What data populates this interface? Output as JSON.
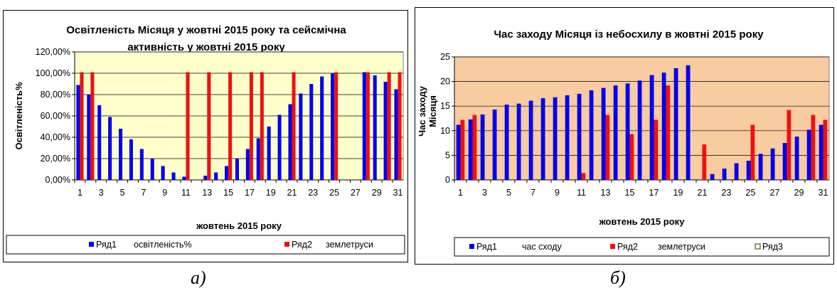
{
  "captions": {
    "a": "а)",
    "b": "б)"
  },
  "colors": {
    "series1": "#0000ee",
    "series2": "#ee1111",
    "plot_a_bg": "#ffffcc",
    "plot_b_bg": "#f8cba0",
    "legend_box3": "#ffffcc"
  },
  "chart_data": [
    {
      "type": "bar",
      "title_line1": "Освітленість Місяця у жовтні 2015 року та сейсмічна",
      "title_line2": "активність  у жовтні 2015 року",
      "xlabel": "жовтень 2015 року",
      "ylabel": "Освітленість%",
      "ylim": [
        0,
        120
      ],
      "y_ticks": [
        "0,00%",
        "20,00%",
        "40,00%",
        "60,00%",
        "80,00%",
        "100,00%",
        "120,00%"
      ],
      "x_ticks": [
        "1",
        "3",
        "5",
        "7",
        "9",
        "11",
        "13",
        "15",
        "17",
        "19",
        "21",
        "23",
        "25",
        "27",
        "29",
        "31"
      ],
      "days": [
        1,
        2,
        3,
        4,
        5,
        6,
        7,
        8,
        9,
        10,
        11,
        12,
        13,
        14,
        15,
        16,
        17,
        18,
        19,
        20,
        21,
        22,
        23,
        24,
        25,
        26,
        27,
        28,
        29,
        30,
        31
      ],
      "grid": "horizontal",
      "legend_position": "bottom",
      "series": [
        {
          "name": "Ряд1",
          "label": "освітленість%",
          "values": [
            89,
            80,
            70,
            59,
            48,
            38,
            29,
            20,
            13,
            7,
            3,
            0,
            4,
            7,
            13,
            20,
            29,
            39,
            50,
            61,
            71,
            81,
            90,
            97,
            100,
            0,
            0,
            101,
            98,
            92,
            85
          ]
        },
        {
          "name": "Ряд2",
          "label": "землетруси",
          "values": [
            101,
            101,
            0,
            0,
            0,
            0,
            0,
            0,
            0,
            0,
            101,
            0,
            101,
            0,
            101,
            0,
            101,
            101,
            0,
            0,
            101,
            0,
            0,
            0,
            101,
            0,
            0,
            101,
            0,
            101,
            101
          ]
        }
      ]
    },
    {
      "type": "bar",
      "title": "Час заходу Місяця із небосхилу в жовтні 2015 року",
      "xlabel": "жовтень 2015 року",
      "ylabel_line1": "Час заходу",
      "ylabel_line2": "Місяця",
      "ylim": [
        0,
        25
      ],
      "y_ticks": [
        "0",
        "5",
        "10",
        "15",
        "20",
        "25"
      ],
      "x_ticks": [
        "1",
        "3",
        "5",
        "7",
        "9",
        "11",
        "13",
        "15",
        "17",
        "19",
        "21",
        "23",
        "25",
        "27",
        "29",
        "31"
      ],
      "days": [
        1,
        2,
        3,
        4,
        5,
        6,
        7,
        8,
        9,
        10,
        11,
        12,
        13,
        14,
        15,
        16,
        17,
        18,
        19,
        20,
        21,
        22,
        23,
        24,
        25,
        26,
        27,
        28,
        29,
        30,
        31
      ],
      "grid": "horizontal",
      "legend_position": "bottom",
      "legend_extra": {
        "name": "Ряд3"
      },
      "series": [
        {
          "name": "Ряд1",
          "label": "час сходу",
          "values": [
            11.2,
            12.3,
            13.3,
            14.3,
            15.3,
            15.5,
            16.1,
            16.6,
            16.8,
            17.2,
            17.5,
            18.2,
            18.7,
            19.2,
            19.6,
            20.2,
            21.3,
            21.8,
            22.7,
            23.3,
            0,
            1.2,
            2.3,
            3.4,
            3.9,
            5.3,
            6.4,
            7.5,
            8.8,
            10.2,
            11.2
          ]
        },
        {
          "name": "Ряд2",
          "label": "землетруси",
          "values": [
            12.2,
            13.2,
            0,
            0,
            0,
            0,
            0,
            0,
            0,
            0,
            1.4,
            0,
            13.2,
            0,
            9.3,
            0,
            12.2,
            19.2,
            0,
            0,
            7.2,
            0,
            0,
            0,
            11.2,
            0,
            0,
            14.2,
            0,
            13.2,
            12.2
          ]
        }
      ]
    }
  ]
}
